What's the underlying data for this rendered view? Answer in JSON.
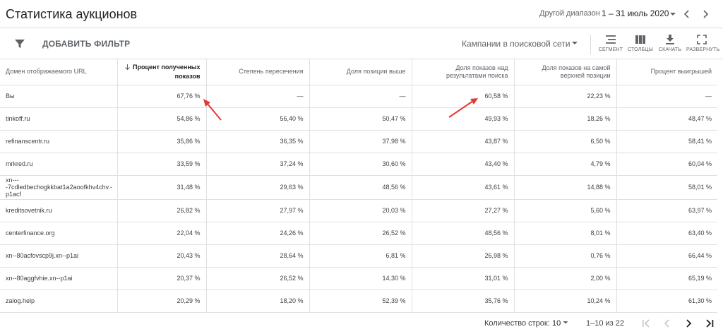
{
  "header": {
    "title": "Статистика аукционов",
    "range_label": "Другой диапазон",
    "range_value": "1 – 31 июль 2020",
    "icons": {
      "dropdown": "arrow-drop-down-icon",
      "prev": "chevron-left-icon",
      "next": "chevron-right-icon"
    }
  },
  "toolbar": {
    "add_filter": "ДОБАВИТЬ ФИЛЬТР",
    "campaign_select": "Кампании в поисковой сети",
    "buttons": [
      {
        "label": "СЕГМЕНТ",
        "icon": "segment-icon"
      },
      {
        "label": "СТОЛБЦЫ",
        "icon": "columns-icon"
      },
      {
        "label": "СКАЧАТЬ",
        "icon": "download-icon"
      },
      {
        "label": "РАЗВЕРНУТЬ",
        "icon": "fullscreen-icon"
      }
    ]
  },
  "table": {
    "columns": [
      "Домен отображаемого URL",
      "Процент полученных показов",
      "Степень пересечения",
      "Доля позиции выше",
      "Доля показов над результатами поиска",
      "Доля показов на самой верхней позиции",
      "Процент выигрышей"
    ],
    "sorted_column": 1,
    "rows": [
      [
        "Вы",
        "67,76 %",
        "—",
        "—",
        "60,58 %",
        "22,23 %",
        "—"
      ],
      [
        "tinkoff.ru",
        "54,86 %",
        "56,40 %",
        "50,47 %",
        "49,93 %",
        "18,26 %",
        "48,47 %"
      ],
      [
        "refinanscentr.ru",
        "35,86 %",
        "36,35 %",
        "37,98 %",
        "43,87 %",
        "6,50 %",
        "58,41 %"
      ],
      [
        "mrkred.ru",
        "33,59 %",
        "37,24 %",
        "30,60 %",
        "43,40 %",
        "4,79 %",
        "60,04 %"
      ],
      [
        "xn----7cdledbechogkkbat1a2aoofkhv4chv.-p1acf",
        "31,48 %",
        "29,63 %",
        "48,56 %",
        "43,61 %",
        "14,88 %",
        "58,01 %"
      ],
      [
        "kreditsovetnik.ru",
        "26,82 %",
        "27,97 %",
        "20,03 %",
        "27,27 %",
        "5,60 %",
        "63,97 %"
      ],
      [
        "centerfinance.org",
        "22,04 %",
        "24,26 %",
        "26,52 %",
        "48,56 %",
        "8,01 %",
        "63,40 %"
      ],
      [
        "xn--80acfovscp9j.xn--p1ai",
        "20,43 %",
        "28,64 %",
        "6,81 %",
        "26,98 %",
        "0,76 %",
        "66,44 %"
      ],
      [
        "xn--80aggfvhie.xn--p1ai",
        "20,37 %",
        "26,52 %",
        "14,30 %",
        "31,01 %",
        "2,00 %",
        "65,19 %"
      ],
      [
        "zalog.help",
        "20,29 %",
        "18,20 %",
        "52,39 %",
        "35,76 %",
        "10,24 %",
        "61,30 %"
      ]
    ]
  },
  "pager": {
    "rows_label": "Количество строк:",
    "rows_value": "10",
    "range_info": "1–10 из 22",
    "icons": [
      "first-page-icon",
      "chevron-left-icon",
      "chevron-right-icon",
      "last-page-icon"
    ]
  },
  "annotation_color": "#e53935"
}
